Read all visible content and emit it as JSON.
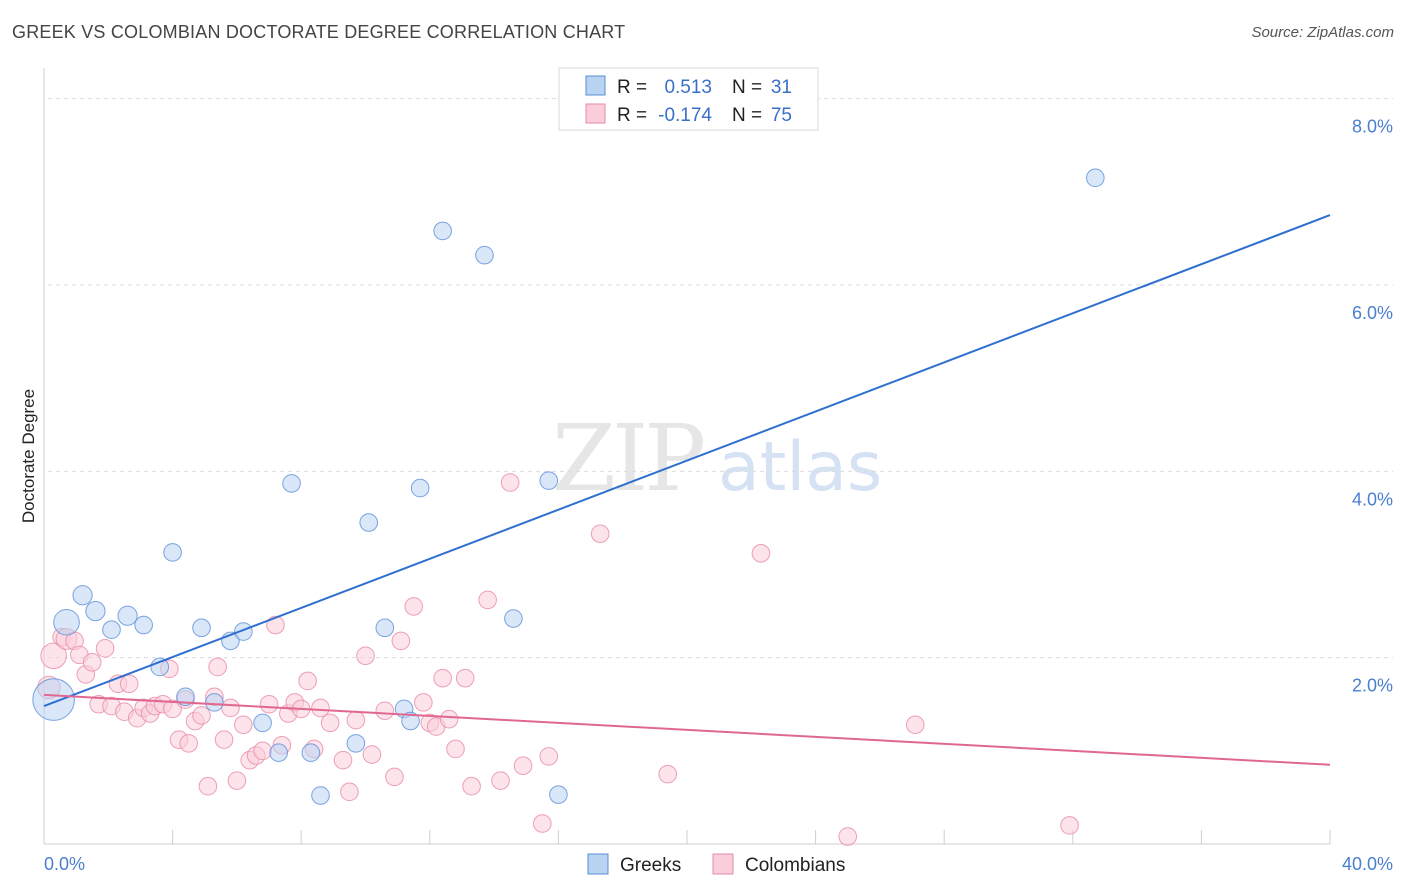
{
  "header": {
    "title": "GREEK VS COLOMBIAN DOCTORATE DEGREE CORRELATION CHART",
    "source": "Source: ZipAtlas.com"
  },
  "watermark": {
    "zip": "ZIP",
    "atlas": "atlas"
  },
  "legend_top": {
    "rows": [
      {
        "r_label": "R =",
        "r_value": "0.513",
        "n_label": "N =",
        "n_value": "31",
        "color": "#a8c8f0"
      },
      {
        "r_label": "R =",
        "r_value": "-0.174",
        "n_label": "N =",
        "n_value": "75",
        "color": "#f7b6c8"
      }
    ]
  },
  "legend_bottom": {
    "items": [
      {
        "label": "Greeks"
      },
      {
        "label": "Colombians"
      }
    ]
  },
  "chart_data": {
    "type": "scatter",
    "title": "GREEK VS COLOMBIAN DOCTORATE DEGREE CORRELATION CHART",
    "xlabel": "",
    "ylabel": "Doctorate Degree",
    "xlim": [
      0,
      40
    ],
    "ylim": [
      0,
      8.2
    ],
    "x_tick_labels": [
      "0.0%",
      "40.0%"
    ],
    "y_ticks": [
      2,
      4,
      6,
      8
    ],
    "y_tick_labels": [
      "2.0%",
      "4.0%",
      "6.0%",
      "8.0%"
    ],
    "grid": true,
    "legend_position": "top-center",
    "series": [
      {
        "name": "Greeks",
        "color": "#5b8fd8",
        "fill": "#b9d3f3",
        "R": 0.513,
        "N": 31,
        "trend": {
          "x0": 0,
          "y0": 1.48,
          "x1": 40,
          "y1": 6.75,
          "color": "#2f6fd0"
        },
        "points": [
          [
            0.3,
            1.55,
            2.6
          ],
          [
            0.7,
            2.38,
            1.6
          ],
          [
            1.2,
            2.67,
            1.2
          ],
          [
            1.6,
            2.5,
            1.2
          ],
          [
            2.1,
            2.3,
            1.1
          ],
          [
            2.6,
            2.45,
            1.2
          ],
          [
            3.1,
            2.35,
            1.1
          ],
          [
            3.6,
            1.9,
            1.1
          ],
          [
            4.0,
            3.13,
            1.1
          ],
          [
            4.4,
            1.58,
            1.1
          ],
          [
            4.9,
            2.32,
            1.1
          ],
          [
            5.3,
            1.52,
            1.1
          ],
          [
            5.8,
            2.18,
            1.1
          ],
          [
            6.2,
            2.28,
            1.1
          ],
          [
            6.8,
            1.3,
            1.1
          ],
          [
            7.3,
            0.98,
            1.1
          ],
          [
            7.7,
            3.87,
            1.1
          ],
          [
            8.3,
            0.98,
            1.1
          ],
          [
            8.6,
            0.52,
            1.1
          ],
          [
            9.7,
            1.08,
            1.1
          ],
          [
            10.1,
            3.45,
            1.1
          ],
          [
            10.6,
            2.32,
            1.1
          ],
          [
            11.2,
            1.45,
            1.1
          ],
          [
            11.4,
            1.32,
            1.1
          ],
          [
            11.7,
            3.82,
            1.1
          ],
          [
            12.4,
            6.58,
            1.1
          ],
          [
            13.7,
            6.32,
            1.1
          ],
          [
            14.6,
            2.42,
            1.1
          ],
          [
            15.7,
            3.9,
            1.1
          ],
          [
            16.0,
            0.53,
            1.1
          ],
          [
            32.7,
            7.15,
            1.1
          ]
        ]
      },
      {
        "name": "Colombians",
        "color": "#e88aa8",
        "fill": "#f9cdd9",
        "R": -0.174,
        "N": 75,
        "trend": {
          "x0": 0,
          "y0": 1.6,
          "x1": 40,
          "y1": 0.85,
          "color": "#e06890"
        },
        "points": [
          [
            0.15,
            1.68,
            1.4
          ],
          [
            0.3,
            2.02,
            1.6
          ],
          [
            0.55,
            2.22,
            1.1
          ],
          [
            0.7,
            2.2,
            1.3
          ],
          [
            0.95,
            2.18,
            1.1
          ],
          [
            1.1,
            2.03,
            1.1
          ],
          [
            1.3,
            1.82,
            1.1
          ],
          [
            1.5,
            1.95,
            1.1
          ],
          [
            1.7,
            1.5,
            1.1
          ],
          [
            1.9,
            2.1,
            1.1
          ],
          [
            2.1,
            1.48,
            1.1
          ],
          [
            2.3,
            1.72,
            1.1
          ],
          [
            2.5,
            1.42,
            1.1
          ],
          [
            2.65,
            1.72,
            1.1
          ],
          [
            2.9,
            1.35,
            1.1
          ],
          [
            3.1,
            1.46,
            1.1
          ],
          [
            3.3,
            1.4,
            1.1
          ],
          [
            3.45,
            1.48,
            1.1
          ],
          [
            3.7,
            1.5,
            1.1
          ],
          [
            3.9,
            1.88,
            1.1
          ],
          [
            4.0,
            1.45,
            1.1
          ],
          [
            4.2,
            1.12,
            1.1
          ],
          [
            4.4,
            1.55,
            1.1
          ],
          [
            4.5,
            1.08,
            1.1
          ],
          [
            4.7,
            1.32,
            1.1
          ],
          [
            4.9,
            1.38,
            1.1
          ],
          [
            5.1,
            0.62,
            1.1
          ],
          [
            5.3,
            1.58,
            1.1
          ],
          [
            5.4,
            1.9,
            1.1
          ],
          [
            5.6,
            1.12,
            1.1
          ],
          [
            5.8,
            1.46,
            1.1
          ],
          [
            6.0,
            0.68,
            1.1
          ],
          [
            6.2,
            1.28,
            1.1
          ],
          [
            6.4,
            0.9,
            1.1
          ],
          [
            6.6,
            0.95,
            1.1
          ],
          [
            6.8,
            1.0,
            1.1
          ],
          [
            7.0,
            1.5,
            1.1
          ],
          [
            7.2,
            2.35,
            1.1
          ],
          [
            7.4,
            1.06,
            1.1
          ],
          [
            7.6,
            1.4,
            1.1
          ],
          [
            7.8,
            1.52,
            1.1
          ],
          [
            8.0,
            1.45,
            1.1
          ],
          [
            8.2,
            1.75,
            1.1
          ],
          [
            8.4,
            1.02,
            1.1
          ],
          [
            8.6,
            1.46,
            1.1
          ],
          [
            8.9,
            1.3,
            1.1
          ],
          [
            9.3,
            0.9,
            1.1
          ],
          [
            9.5,
            0.56,
            1.1
          ],
          [
            9.7,
            1.33,
            1.1
          ],
          [
            10.0,
            2.02,
            1.1
          ],
          [
            10.2,
            0.96,
            1.1
          ],
          [
            10.6,
            1.43,
            1.1
          ],
          [
            10.9,
            0.72,
            1.1
          ],
          [
            11.1,
            2.18,
            1.1
          ],
          [
            11.5,
            2.55,
            1.1
          ],
          [
            11.8,
            1.52,
            1.1
          ],
          [
            12.0,
            1.3,
            1.1
          ],
          [
            12.2,
            1.26,
            1.1
          ],
          [
            12.4,
            1.78,
            1.1
          ],
          [
            12.6,
            1.34,
            1.1
          ],
          [
            12.8,
            1.02,
            1.1
          ],
          [
            13.1,
            1.78,
            1.1
          ],
          [
            13.3,
            0.62,
            1.1
          ],
          [
            13.8,
            2.62,
            1.1
          ],
          [
            14.2,
            0.68,
            1.1
          ],
          [
            14.5,
            3.88,
            1.1
          ],
          [
            14.9,
            0.84,
            1.1
          ],
          [
            15.5,
            0.22,
            1.1
          ],
          [
            15.7,
            0.94,
            1.1
          ],
          [
            17.3,
            3.33,
            1.1
          ],
          [
            19.4,
            0.75,
            1.1
          ],
          [
            22.3,
            3.12,
            1.1
          ],
          [
            25.0,
            0.08,
            1.1
          ],
          [
            27.1,
            1.28,
            1.1
          ],
          [
            31.9,
            0.2,
            1.1
          ]
        ]
      }
    ]
  }
}
